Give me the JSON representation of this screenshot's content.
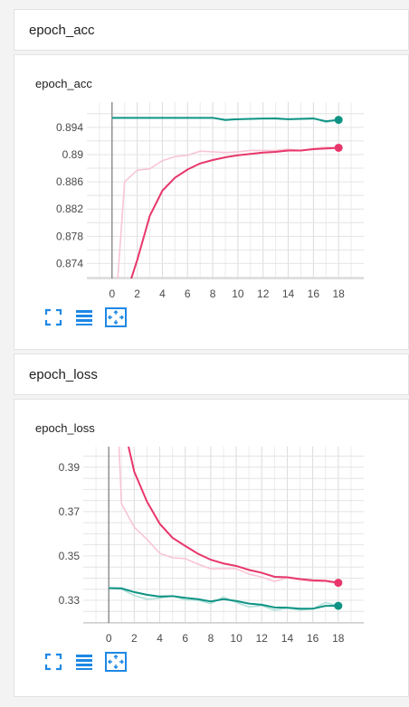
{
  "sections": [
    {
      "title": "epoch_acc"
    },
    {
      "title": "epoch_loss"
    }
  ],
  "icons": [
    "fullscreen-icon",
    "list-icon",
    "fit-domain-icon"
  ],
  "colors": {
    "pink_series": "#e8366b",
    "pink_smooth": "#f8c5d5",
    "teal_series": "#0f9484",
    "teal_smooth": "#b2e0d9",
    "accent": "#1e88e5"
  },
  "chart_data": [
    {
      "type": "line",
      "title": "epoch_acc",
      "xlim": [
        -2,
        20
      ],
      "ylim": [
        0.8718,
        0.8977
      ],
      "xticks": [
        "0",
        "2",
        "4",
        "6",
        "8",
        "10",
        "12",
        "14",
        "16",
        "18"
      ],
      "yticks": [
        "0.874",
        "0.878",
        "0.882",
        "0.886",
        "0.89",
        "0.894"
      ],
      "series": [
        {
          "color": "#e8366b",
          "raw": [
            [
              0,
              0.86
            ],
            [
              1,
              0.886
            ],
            [
              2,
              0.8877
            ],
            [
              3,
              0.8879
            ],
            [
              4,
              0.8891
            ],
            [
              5,
              0.8897
            ],
            [
              6,
              0.8899
            ],
            [
              7,
              0.8905
            ],
            [
              8,
              0.8904
            ],
            [
              9,
              0.8903
            ],
            [
              10,
              0.8904
            ],
            [
              11,
              0.8906
            ],
            [
              12,
              0.8906
            ],
            [
              13,
              0.8906
            ],
            [
              14,
              0.8908
            ],
            [
              15,
              0.8906
            ],
            [
              16,
              0.8909
            ],
            [
              17,
              0.8911
            ],
            [
              18,
              0.891
            ]
          ],
          "smooth": [
            [
              1.3,
              0.8705
            ],
            [
              2,
              0.8745
            ],
            [
              3,
              0.881
            ],
            [
              4,
              0.8847
            ],
            [
              5,
              0.8866
            ],
            [
              6,
              0.8878
            ],
            [
              7,
              0.8887
            ],
            [
              8,
              0.8892
            ],
            [
              9,
              0.8896
            ],
            [
              10,
              0.8899
            ],
            [
              11,
              0.8901
            ],
            [
              12,
              0.8903
            ],
            [
              13,
              0.8904
            ],
            [
              14,
              0.8906
            ],
            [
              15,
              0.8906
            ],
            [
              16,
              0.8908
            ],
            [
              17,
              0.8909
            ],
            [
              18,
              0.891
            ]
          ]
        },
        {
          "color": "#0f9484",
          "raw": [
            [
              0,
              0.8954
            ],
            [
              2,
              0.8954
            ],
            [
              4,
              0.8954
            ],
            [
              6,
              0.8954
            ],
            [
              8,
              0.8954
            ],
            [
              9,
              0.895
            ],
            [
              10,
              0.8952
            ],
            [
              12,
              0.8953
            ],
            [
              13,
              0.8954
            ],
            [
              14,
              0.8952
            ],
            [
              16,
              0.8954
            ],
            [
              17,
              0.8947
            ],
            [
              18,
              0.8952
            ]
          ],
          "smooth": [
            [
              0,
              0.8954
            ],
            [
              2,
              0.8954
            ],
            [
              4,
              0.8954
            ],
            [
              6,
              0.8954
            ],
            [
              8,
              0.8954
            ],
            [
              9,
              0.8951
            ],
            [
              10,
              0.8952
            ],
            [
              12,
              0.8953
            ],
            [
              13,
              0.8953
            ],
            [
              14,
              0.8952
            ],
            [
              16,
              0.8953
            ],
            [
              17,
              0.8949
            ],
            [
              18,
              0.8951
            ]
          ]
        }
      ]
    },
    {
      "type": "line",
      "title": "epoch_loss",
      "xlim": [
        -2,
        20
      ],
      "ylim": [
        0.3198,
        0.3993
      ],
      "xticks": [
        "0",
        "2",
        "4",
        "6",
        "8",
        "10",
        "12",
        "14",
        "16",
        "18"
      ],
      "yticks": [
        "0.33",
        "0.35",
        "0.37",
        "0.39"
      ],
      "series": [
        {
          "color": "#e8366b",
          "raw": [
            [
              0.8,
              0.4
            ],
            [
              1,
              0.3735
            ],
            [
              2,
              0.363
            ],
            [
              3,
              0.3575
            ],
            [
              4,
              0.3512
            ],
            [
              5,
              0.3492
            ],
            [
              6,
              0.3488
            ],
            [
              7,
              0.3463
            ],
            [
              8,
              0.3442
            ],
            [
              9,
              0.3443
            ],
            [
              10,
              0.3443
            ],
            [
              11,
              0.3418
            ],
            [
              12,
              0.3405
            ],
            [
              13,
              0.3385
            ],
            [
              14,
              0.3402
            ],
            [
              15,
              0.3392
            ],
            [
              16,
              0.3385
            ],
            [
              17,
              0.3385
            ],
            [
              18,
              0.3376
            ]
          ],
          "smooth": [
            [
              1.55,
              0.3993
            ],
            [
              2,
              0.388
            ],
            [
              3,
              0.3745
            ],
            [
              4,
              0.3645
            ],
            [
              5,
              0.3582
            ],
            [
              6,
              0.3545
            ],
            [
              7,
              0.351
            ],
            [
              8,
              0.3483
            ],
            [
              9,
              0.3466
            ],
            [
              10,
              0.3455
            ],
            [
              11,
              0.3437
            ],
            [
              12,
              0.3424
            ],
            [
              13,
              0.3406
            ],
            [
              14,
              0.3404
            ],
            [
              15,
              0.3396
            ],
            [
              16,
              0.339
            ],
            [
              17,
              0.3388
            ],
            [
              18,
              0.3379
            ]
          ]
        },
        {
          "color": "#0f9484",
          "raw": [
            [
              0,
              0.3355
            ],
            [
              1,
              0.335
            ],
            [
              2,
              0.3322
            ],
            [
              3,
              0.3305
            ],
            [
              4,
              0.331
            ],
            [
              5,
              0.332
            ],
            [
              6,
              0.3302
            ],
            [
              7,
              0.33
            ],
            [
              8,
              0.3285
            ],
            [
              9,
              0.3315
            ],
            [
              10,
              0.329
            ],
            [
              11,
              0.327
            ],
            [
              12,
              0.3276
            ],
            [
              13,
              0.3255
            ],
            [
              14,
              0.3265
            ],
            [
              15,
              0.3256
            ],
            [
              16,
              0.3262
            ],
            [
              17,
              0.329
            ],
            [
              18,
              0.3275
            ]
          ],
          "smooth": [
            [
              0,
              0.3355
            ],
            [
              1,
              0.3354
            ],
            [
              2,
              0.3337
            ],
            [
              3,
              0.3325
            ],
            [
              4,
              0.3317
            ],
            [
              5,
              0.3319
            ],
            [
              6,
              0.3311
            ],
            [
              7,
              0.3305
            ],
            [
              8,
              0.3295
            ],
            [
              9,
              0.3305
            ],
            [
              10,
              0.3297
            ],
            [
              11,
              0.3285
            ],
            [
              12,
              0.328
            ],
            [
              13,
              0.3268
            ],
            [
              14,
              0.3267
            ],
            [
              15,
              0.3262
            ],
            [
              16,
              0.3262
            ],
            [
              17,
              0.3275
            ],
            [
              18,
              0.3275
            ]
          ]
        }
      ]
    }
  ]
}
